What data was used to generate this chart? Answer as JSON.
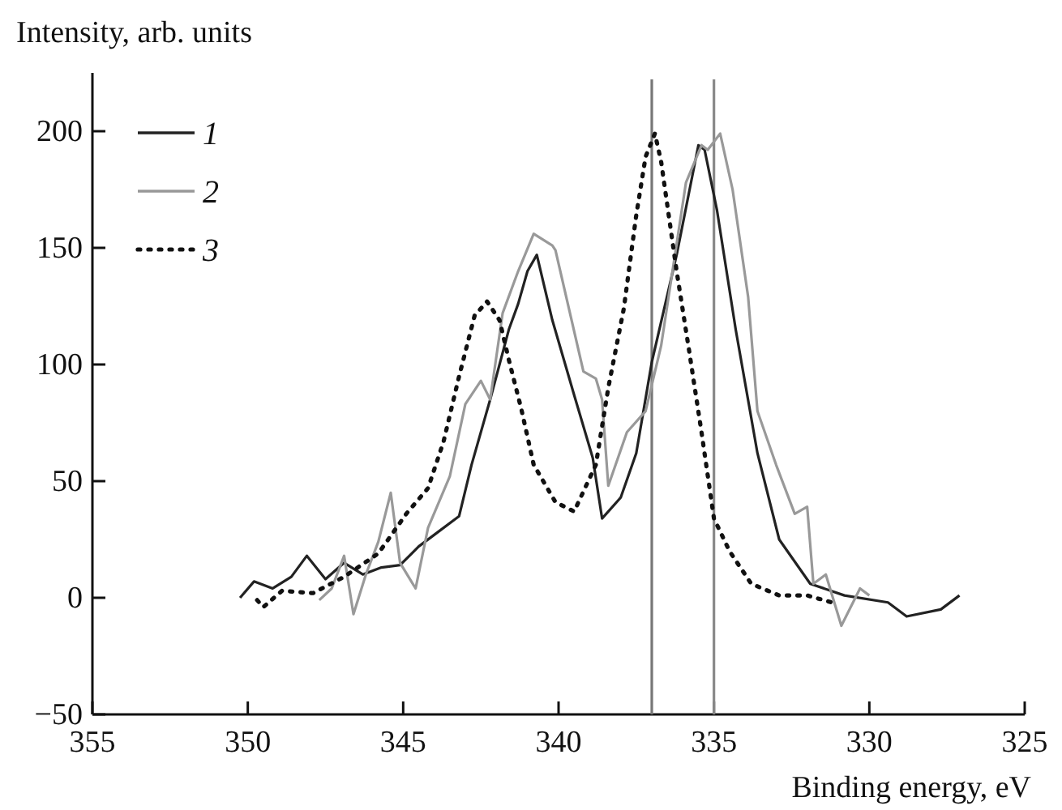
{
  "chart_data": {
    "type": "line",
    "xlabel": "Binding energy, eV",
    "ylabel": "Intensity, arb. units",
    "xlim": [
      355,
      325
    ],
    "xticks": [
      355,
      350,
      345,
      340,
      335,
      330,
      325
    ],
    "ylim": [
      -50,
      225
    ],
    "yticks": [
      -50,
      0,
      50,
      100,
      150,
      200
    ],
    "grid": false,
    "legend": "top left",
    "marker": "none",
    "series": [
      {
        "name": "1",
        "color": "#222222",
        "line_style": "solid",
        "x": [
          350.25,
          349.8,
          349.2,
          348.6,
          348.1,
          347.5,
          346.9,
          346.3,
          345.7,
          345.1,
          344.5,
          343.9,
          343.2,
          342.8,
          342.2,
          341.6,
          341.3,
          341.0,
          340.7,
          340.2,
          339.5,
          338.9,
          338.6,
          338.0,
          337.5,
          337.0,
          336.2,
          335.5,
          335.3,
          334.9,
          334.3,
          333.6,
          332.9,
          331.9,
          330.8,
          329.4,
          328.8,
          327.7,
          327.1
        ],
        "values": [
          0,
          7,
          4,
          9,
          18,
          8,
          15,
          10,
          13,
          14,
          22,
          28,
          35,
          57,
          85,
          115,
          126,
          140,
          147,
          119,
          87,
          60,
          34,
          43,
          62,
          101,
          147,
          194,
          192,
          166,
          115,
          62,
          25,
          6,
          1,
          -2,
          -8,
          -5,
          1
        ]
      },
      {
        "name": "2",
        "color": "#999999",
        "line_style": "solid",
        "x": [
          347.7,
          347.3,
          346.9,
          346.6,
          346.2,
          345.8,
          345.4,
          345.1,
          344.6,
          344.2,
          343.5,
          343.0,
          342.5,
          342.2,
          341.8,
          341.3,
          340.8,
          340.2,
          340.1,
          339.2,
          338.8,
          338.6,
          338.4,
          337.8,
          337.2,
          336.7,
          335.9,
          335.4,
          335.2,
          334.8,
          334.4,
          333.9,
          333.6,
          333.0,
          332.4,
          332.0,
          331.8,
          331.4,
          330.9,
          330.3,
          330.0
        ],
        "values": [
          -1,
          4,
          18,
          -7,
          10,
          24,
          45,
          15,
          4,
          30,
          52,
          83,
          93,
          85,
          122,
          140,
          156,
          151,
          149,
          97,
          94,
          85,
          48,
          71,
          80,
          108,
          178,
          194,
          192,
          199,
          175,
          129,
          80,
          57,
          36,
          39,
          6,
          10,
          -12,
          4,
          1
        ]
      },
      {
        "name": "3",
        "color": "#111111",
        "line_style": "dotted",
        "x": [
          349.7,
          349.5,
          348.9,
          347.9,
          346.9,
          345.8,
          344.9,
          344.2,
          343.7,
          343.2,
          342.7,
          342.3,
          341.9,
          341.6,
          341.2,
          340.8,
          340.1,
          339.5,
          338.8,
          338.4,
          337.9,
          337.5,
          337.2,
          336.9,
          336.7,
          336.2,
          335.8,
          335.4,
          335.0,
          334.5,
          333.8,
          332.9,
          332.0,
          331.2
        ],
        "values": [
          -1,
          -4,
          3,
          2,
          9,
          19,
          36,
          47,
          67,
          95,
          121,
          127,
          119,
          102,
          81,
          57,
          41,
          37,
          57,
          90,
          124,
          164,
          189,
          199,
          187,
          140,
          106,
          71,
          34,
          20,
          6,
          1,
          1,
          -2
        ]
      }
    ],
    "ref_lines": [
      {
        "axis": "x",
        "value": 337,
        "color": "#777777"
      },
      {
        "axis": "x",
        "value": 335,
        "color": "#888888"
      }
    ]
  }
}
